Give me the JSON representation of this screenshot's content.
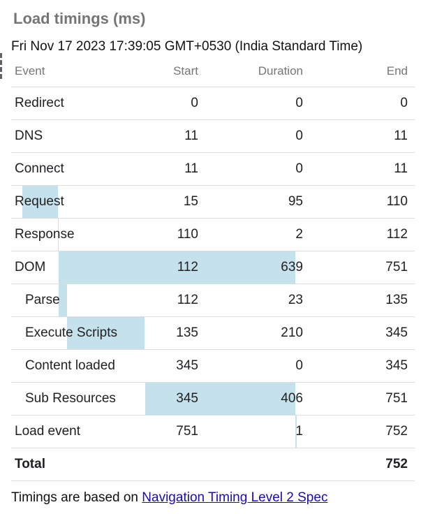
{
  "title": "Load timings (ms)",
  "date": "Fri Nov 17 2023 17:39:05 GMT+0530 (India Standard Time)",
  "columns": {
    "event": "Event",
    "start": "Start",
    "duration": "Duration",
    "end": "End"
  },
  "load_end_ms": 752,
  "rows": [
    {
      "event": "Redirect",
      "start": "0",
      "duration": "0",
      "end": "0"
    },
    {
      "event": "DNS",
      "start": "11",
      "duration": "0",
      "end": "11"
    },
    {
      "event": "Connect",
      "start": "11",
      "duration": "0",
      "end": "11"
    },
    {
      "event": "Request",
      "start": "15",
      "duration": "95",
      "end": "110"
    },
    {
      "event": "Response",
      "start": "110",
      "duration": "2",
      "end": "112"
    },
    {
      "event": "DOM",
      "start": "112",
      "duration": "639",
      "end": "751"
    },
    {
      "event": "Parse",
      "start": "112",
      "duration": "23",
      "end": "135",
      "indent": true
    },
    {
      "event": "Execute Scripts",
      "start": "135",
      "duration": "210",
      "end": "345",
      "indent": true
    },
    {
      "event": "Content loaded",
      "start": "345",
      "duration": "0",
      "end": "345",
      "indent": true
    },
    {
      "event": "Sub Resources",
      "start": "345",
      "duration": "406",
      "end": "751",
      "indent": true
    },
    {
      "event": "Load event",
      "start": "751",
      "duration": "1",
      "end": "752"
    }
  ],
  "total": {
    "label": "Total",
    "end": "752"
  },
  "bar_color": "#c5e1ec",
  "footer": {
    "text": "Timings are based on ",
    "link_text": "Navigation Timing Level 2 Spec"
  }
}
